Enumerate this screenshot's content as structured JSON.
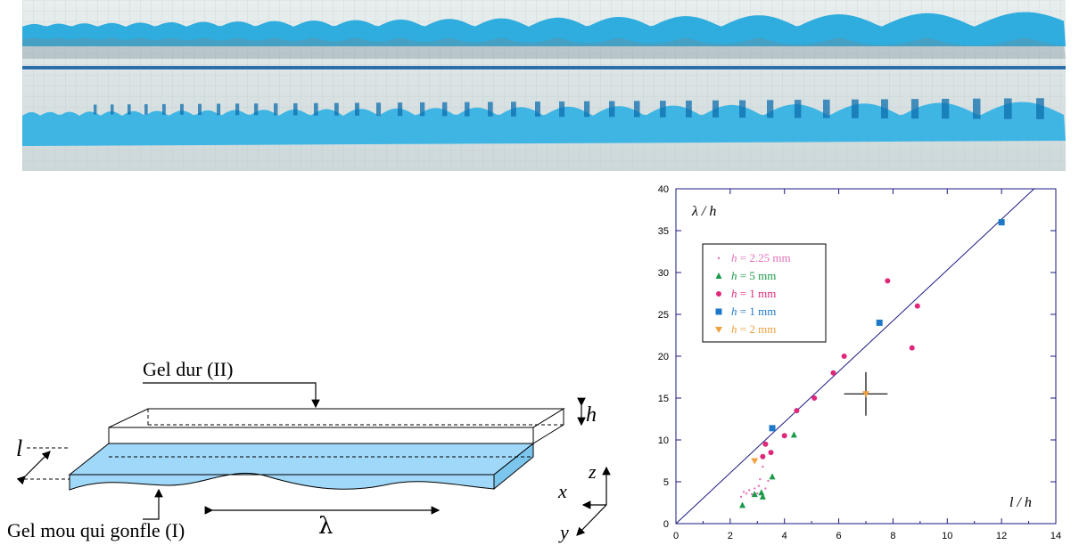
{
  "photo": {
    "gel_color": "#1ea7dc",
    "deep_color": "#0f6fae",
    "background_color": "#dbe4e6",
    "separator_color": "#2a6fa8"
  },
  "diagram": {
    "hard_gel_label": "Gel dur (II)",
    "soft_gel_label": "Gel mou qui gonfle (I)",
    "h_label": "h",
    "l_label": "l",
    "lambda_label": "λ",
    "axis_x": "x",
    "axis_y": "y",
    "axis_z": "z",
    "soft_gel_color": "#9fd8f8"
  },
  "chart_data": {
    "type": "scatter",
    "ylabel": "λ / h",
    "xlabel": "l / h",
    "xlim": [
      0,
      14
    ],
    "ylim": [
      0,
      40
    ],
    "xticks": [
      "0",
      "2",
      "4",
      "6",
      "8",
      "10",
      "12",
      "14"
    ],
    "yticks": [
      "0",
      "5",
      "10",
      "15",
      "20",
      "25",
      "30",
      "35",
      "40"
    ],
    "grid": false,
    "legend_position": "upper-left",
    "fit_line": {
      "x": [
        0,
        13.2
      ],
      "y": [
        0,
        40
      ]
    },
    "error_cross": {
      "x": 7.0,
      "y": 15.5,
      "xerr": 0.8,
      "yerr": 2.6
    },
    "series": [
      {
        "h_var": "h",
        "name_rest": " = 2.25 mm",
        "color": "#e070b8",
        "marker": "dot",
        "x": [
          2.4,
          2.5,
          2.6,
          2.7,
          2.8,
          2.9,
          3.0,
          3.05,
          3.1,
          3.2,
          3.3,
          3.4
        ],
        "y": [
          3.2,
          3.8,
          3.6,
          4.0,
          3.5,
          4.2,
          3.6,
          4.5,
          5.3,
          6.8,
          4.2,
          5.1
        ]
      },
      {
        "h_var": "h",
        "name_rest": " = 5 mm",
        "color": "#1a9a4a",
        "marker": "triangle",
        "x": [
          2.45,
          2.9,
          3.15,
          3.2,
          3.55,
          4.35
        ],
        "y": [
          2.2,
          3.5,
          3.7,
          3.2,
          5.6,
          10.6
        ]
      },
      {
        "h_var": "h",
        "name_rest": " = 1 mm",
        "color": "#e0287a",
        "marker": "circle",
        "x": [
          3.2,
          3.3,
          3.5,
          4.0,
          4.45,
          5.1,
          5.8,
          6.2,
          7.8,
          8.7,
          8.9
        ],
        "y": [
          8.0,
          9.5,
          8.5,
          10.5,
          13.5,
          15.0,
          18.0,
          20.0,
          29.0,
          21.0,
          26.0
        ]
      },
      {
        "h_var": "h",
        "name_rest": " = 1 mm",
        "color": "#1e78c8",
        "marker": "square",
        "x": [
          3.55,
          7.5,
          12.0
        ],
        "y": [
          11.4,
          24.0,
          36.0
        ]
      },
      {
        "h_var": "h",
        "name_rest": " = 2 mm",
        "color": "#f0a040",
        "marker": "triangle-down",
        "x": [
          2.9,
          7.0
        ],
        "y": [
          7.5,
          15.5
        ]
      }
    ]
  }
}
